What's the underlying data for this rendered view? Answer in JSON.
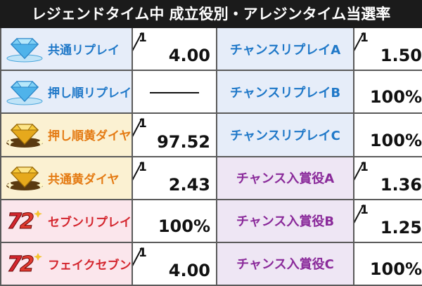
{
  "title": "レジェンドタイム中 成立役別・アレジンタイム当選率",
  "colors": {
    "blue_text": "#1f78c8",
    "orange_text": "#e47a12",
    "red_text": "#d4262e",
    "purple_text": "#8a2a9a",
    "blue_bg": "#e6edf9",
    "yellow_bg": "#fbf1d2",
    "pink_bg": "#fbe6ec",
    "purple_bg": "#eee6f4"
  },
  "rows": [
    {
      "left_icon": "blue-diamond-icon",
      "left_label": "共通リプレイ",
      "left_color": "blue",
      "left_value": {
        "type": "fraction",
        "num": "1",
        "den": "4.00"
      },
      "right_label": "チャンスリプレイA",
      "right_color": "blue",
      "right_value": {
        "type": "fraction",
        "num": "1",
        "den": "1.50"
      }
    },
    {
      "left_icon": "blue-diamond-icon",
      "left_label": "押し順リプレイ",
      "left_color": "blue",
      "left_value": {
        "type": "dash",
        "text": "―"
      },
      "right_label": "チャンスリプレイB",
      "right_color": "blue",
      "right_value": {
        "type": "percent",
        "text": "100%"
      }
    },
    {
      "left_icon": "gold-diamond-icon",
      "left_label": "押し順黄ダイヤ",
      "left_color": "orange",
      "left_value": {
        "type": "fraction",
        "num": "1",
        "den": "97.52"
      },
      "right_label": "チャンスリプレイC",
      "right_color": "blue",
      "right_value": {
        "type": "percent",
        "text": "100%"
      }
    },
    {
      "left_icon": "gold-diamond-icon",
      "left_label": "共通黄ダイヤ",
      "left_color": "orange",
      "left_value": {
        "type": "fraction",
        "num": "1",
        "den": "2.43"
      },
      "right_label": "チャンス入賞役A",
      "right_color": "purple",
      "right_value": {
        "type": "fraction",
        "num": "1",
        "den": "1.36"
      }
    },
    {
      "left_icon": "red-seven-icon",
      "left_label": "セブンリプレイ",
      "left_color": "red",
      "left_value": {
        "type": "percent",
        "text": "100%"
      },
      "right_label": "チャンス入賞役B",
      "right_color": "purple",
      "right_value": {
        "type": "fraction",
        "num": "1",
        "den": "1.25"
      }
    },
    {
      "left_icon": "red-seven-icon",
      "left_label": "フェイクセブン",
      "left_color": "red",
      "left_value": {
        "type": "fraction",
        "num": "1",
        "den": "4.00"
      },
      "right_label": "チャンス入賞役C",
      "right_color": "purple",
      "right_value": {
        "type": "percent",
        "text": "100%"
      }
    }
  ]
}
